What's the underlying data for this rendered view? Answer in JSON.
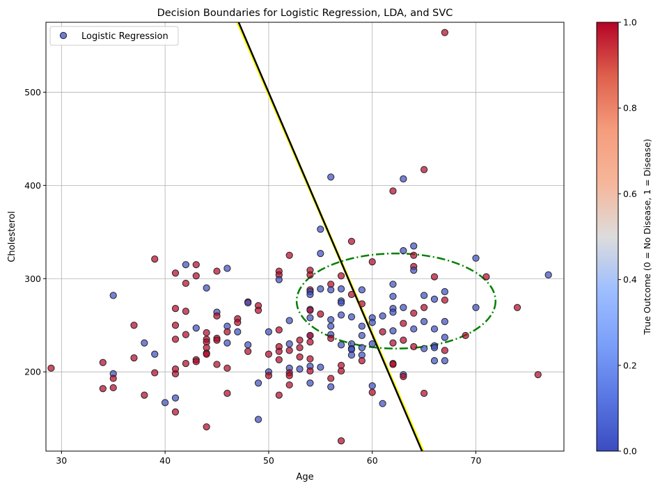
{
  "chart_data": {
    "type": "scatter",
    "title": "Decision Boundaries for Logistic Regression, LDA, and SVC",
    "xlabel": "Age",
    "ylabel": "Cholesterol",
    "xlim": [
      28.5,
      78.5
    ],
    "ylim": [
      115,
      575
    ],
    "xticks": [
      30,
      40,
      50,
      60,
      70
    ],
    "yticks": [
      200,
      300,
      400,
      500
    ],
    "grid": true,
    "legend": {
      "placement": "top-left",
      "entries": [
        "Logistic Regression"
      ]
    },
    "colorbar": {
      "label": "True Outcome (0 = No Disease, 1 = Disease)",
      "range": [
        0,
        1
      ],
      "ticks": [
        "0.0",
        "0.2",
        "0.4",
        "0.6",
        "0.8",
        "1.0"
      ],
      "colormap": "coolwarm",
      "color_low": "#3b4cc0",
      "color_high": "#b40426"
    },
    "boundaries": [
      {
        "style": "solid",
        "color": "#ffff00",
        "points": [
          [
            47.0,
            575
          ],
          [
            64.9,
            115
          ]
        ]
      },
      {
        "style": "solid",
        "color": "#000000",
        "points": [
          [
            47.1,
            575
          ],
          [
            64.8,
            115
          ]
        ]
      },
      {
        "style": "dashdot",
        "color": "#008000",
        "shape": "ellipse",
        "center": [
          62.3,
          276
        ],
        "rx": 9.6,
        "ry": 51
      }
    ],
    "points": [
      [
        29,
        204,
        1
      ],
      [
        34,
        182,
        1
      ],
      [
        34,
        210,
        1
      ],
      [
        35,
        198,
        0
      ],
      [
        35,
        193,
        1
      ],
      [
        35,
        183,
        1
      ],
      [
        35,
        282,
        0
      ],
      [
        37,
        250,
        1
      ],
      [
        37,
        215,
        1
      ],
      [
        38,
        231,
        0
      ],
      [
        38,
        175,
        1
      ],
      [
        39,
        321,
        1
      ],
      [
        39,
        219,
        0
      ],
      [
        39,
        199,
        1
      ],
      [
        40,
        167,
        0
      ],
      [
        41,
        157,
        1
      ],
      [
        41,
        172,
        0
      ],
      [
        41,
        198,
        1
      ],
      [
        41,
        203,
        1
      ],
      [
        41,
        235,
        1
      ],
      [
        41,
        250,
        1
      ],
      [
        41,
        268,
        1
      ],
      [
        41,
        306,
        1
      ],
      [
        42,
        315,
        0
      ],
      [
        42,
        295,
        1
      ],
      [
        42,
        265,
        1
      ],
      [
        42,
        240,
        1
      ],
      [
        42,
        209,
        1
      ],
      [
        43,
        315,
        1
      ],
      [
        43,
        303,
        1
      ],
      [
        43,
        247,
        0
      ],
      [
        43,
        213,
        1
      ],
      [
        43,
        211,
        1
      ],
      [
        44,
        290,
        0
      ],
      [
        44,
        242,
        1
      ],
      [
        44,
        235,
        1
      ],
      [
        44,
        232,
        1
      ],
      [
        44,
        226,
        1
      ],
      [
        44,
        220,
        1
      ],
      [
        44,
        219,
        1
      ],
      [
        44,
        141,
        1
      ],
      [
        45,
        308,
        1
      ],
      [
        45,
        264,
        0
      ],
      [
        45,
        260,
        1
      ],
      [
        45,
        236,
        1
      ],
      [
        45,
        234,
        1
      ],
      [
        45,
        208,
        1
      ],
      [
        46,
        311,
        0
      ],
      [
        46,
        249,
        0
      ],
      [
        46,
        243,
        1
      ],
      [
        46,
        231,
        0
      ],
      [
        46,
        204,
        1
      ],
      [
        46,
        177,
        1
      ],
      [
        47,
        257,
        1
      ],
      [
        47,
        253,
        1
      ],
      [
        47,
        243,
        0
      ],
      [
        48,
        275,
        1
      ],
      [
        48,
        274,
        0
      ],
      [
        48,
        229,
        0
      ],
      [
        48,
        222,
        1
      ],
      [
        49,
        271,
        1
      ],
      [
        49,
        266,
        1
      ],
      [
        49,
        188,
        0
      ],
      [
        49,
        149,
        0
      ],
      [
        50,
        243,
        0
      ],
      [
        50,
        219,
        1
      ],
      [
        50,
        200,
        0
      ],
      [
        50,
        196,
        1
      ],
      [
        51,
        308,
        1
      ],
      [
        51,
        304,
        1
      ],
      [
        51,
        299,
        0
      ],
      [
        51,
        245,
        1
      ],
      [
        51,
        227,
        1
      ],
      [
        51,
        222,
        1
      ],
      [
        51,
        213,
        1
      ],
      [
        51,
        175,
        1
      ],
      [
        52,
        325,
        1
      ],
      [
        52,
        255,
        0
      ],
      [
        52,
        230,
        0
      ],
      [
        52,
        223,
        1
      ],
      [
        52,
        204,
        0
      ],
      [
        52,
        199,
        1
      ],
      [
        52,
        196,
        1
      ],
      [
        52,
        186,
        1
      ],
      [
        53,
        234,
        1
      ],
      [
        53,
        226,
        1
      ],
      [
        53,
        216,
        1
      ],
      [
        53,
        203,
        0
      ],
      [
        54,
        309,
        1
      ],
      [
        54,
        304,
        1
      ],
      [
        54,
        288,
        1
      ],
      [
        54,
        286,
        0
      ],
      [
        54,
        283,
        0
      ],
      [
        54,
        267,
        0
      ],
      [
        54,
        266,
        1
      ],
      [
        54,
        258,
        0
      ],
      [
        54,
        239,
        0
      ],
      [
        54,
        239,
        1
      ],
      [
        54,
        232,
        1
      ],
      [
        54,
        214,
        1
      ],
      [
        54,
        206,
        0
      ],
      [
        54,
        201,
        1
      ],
      [
        54,
        188,
        0
      ],
      [
        55,
        353,
        0
      ],
      [
        55,
        327,
        0
      ],
      [
        55,
        289,
        0
      ],
      [
        55,
        262,
        1
      ],
      [
        55,
        205,
        0
      ],
      [
        56,
        409,
        0
      ],
      [
        56,
        294,
        1
      ],
      [
        56,
        288,
        0
      ],
      [
        56,
        256,
        0
      ],
      [
        56,
        249,
        0
      ],
      [
        56,
        240,
        0
      ],
      [
        56,
        236,
        1
      ],
      [
        56,
        193,
        1
      ],
      [
        56,
        184,
        0
      ],
      [
        57,
        303,
        1
      ],
      [
        57,
        289,
        0
      ],
      [
        57,
        276,
        0
      ],
      [
        57,
        274,
        0
      ],
      [
        57,
        261,
        0
      ],
      [
        57,
        229,
        0
      ],
      [
        57,
        207,
        1
      ],
      [
        57,
        201,
        1
      ],
      [
        57,
        126,
        1
      ],
      [
        58,
        340,
        1
      ],
      [
        58,
        283,
        1
      ],
      [
        58,
        259,
        0
      ],
      [
        58,
        230,
        0
      ],
      [
        58,
        225,
        0
      ],
      [
        58,
        224,
        0
      ],
      [
        58,
        218,
        0
      ],
      [
        59,
        288,
        0
      ],
      [
        59,
        273,
        1
      ],
      [
        59,
        249,
        0
      ],
      [
        59,
        239,
        0
      ],
      [
        59,
        226,
        0
      ],
      [
        59,
        218,
        0
      ],
      [
        59,
        212,
        1
      ],
      [
        60,
        318,
        1
      ],
      [
        60,
        258,
        0
      ],
      [
        60,
        253,
        0
      ],
      [
        60,
        230,
        0
      ],
      [
        60,
        185,
        0
      ],
      [
        60,
        178,
        1
      ],
      [
        61,
        260,
        0
      ],
      [
        61,
        243,
        1
      ],
      [
        61,
        166,
        0
      ],
      [
        62,
        394,
        1
      ],
      [
        62,
        294,
        0
      ],
      [
        62,
        281,
        0
      ],
      [
        62,
        268,
        0
      ],
      [
        62,
        264,
        0
      ],
      [
        62,
        244,
        0
      ],
      [
        62,
        231,
        1
      ],
      [
        62,
        209,
        1
      ],
      [
        62,
        208,
        1
      ],
      [
        63,
        407,
        0
      ],
      [
        63,
        330,
        0
      ],
      [
        63,
        269,
        0
      ],
      [
        63,
        252,
        1
      ],
      [
        63,
        234,
        1
      ],
      [
        63,
        197,
        0
      ],
      [
        63,
        195,
        1
      ],
      [
        64,
        335,
        0
      ],
      [
        64,
        325,
        1
      ],
      [
        64,
        313,
        1
      ],
      [
        64,
        309,
        0
      ],
      [
        64,
        263,
        1
      ],
      [
        64,
        246,
        0
      ],
      [
        64,
        227,
        1
      ],
      [
        65,
        417,
        1
      ],
      [
        65,
        282,
        0
      ],
      [
        65,
        269,
        1
      ],
      [
        65,
        254,
        0
      ],
      [
        65,
        225,
        0
      ],
      [
        65,
        177,
        1
      ],
      [
        66,
        302,
        1
      ],
      [
        66,
        278,
        0
      ],
      [
        66,
        246,
        0
      ],
      [
        66,
        228,
        0
      ],
      [
        66,
        226,
        0
      ],
      [
        66,
        212,
        0
      ],
      [
        67,
        564,
        1
      ],
      [
        67,
        286,
        0
      ],
      [
        67,
        277,
        1
      ],
      [
        67,
        254,
        0
      ],
      [
        67,
        237,
        0
      ],
      [
        67,
        223,
        1
      ],
      [
        67,
        212,
        0
      ],
      [
        69,
        239,
        1
      ],
      [
        70,
        322,
        0
      ],
      [
        70,
        269,
        0
      ],
      [
        71,
        302,
        1
      ],
      [
        74,
        269,
        1
      ],
      [
        76,
        197,
        1
      ],
      [
        77,
        304,
        0
      ]
    ]
  }
}
